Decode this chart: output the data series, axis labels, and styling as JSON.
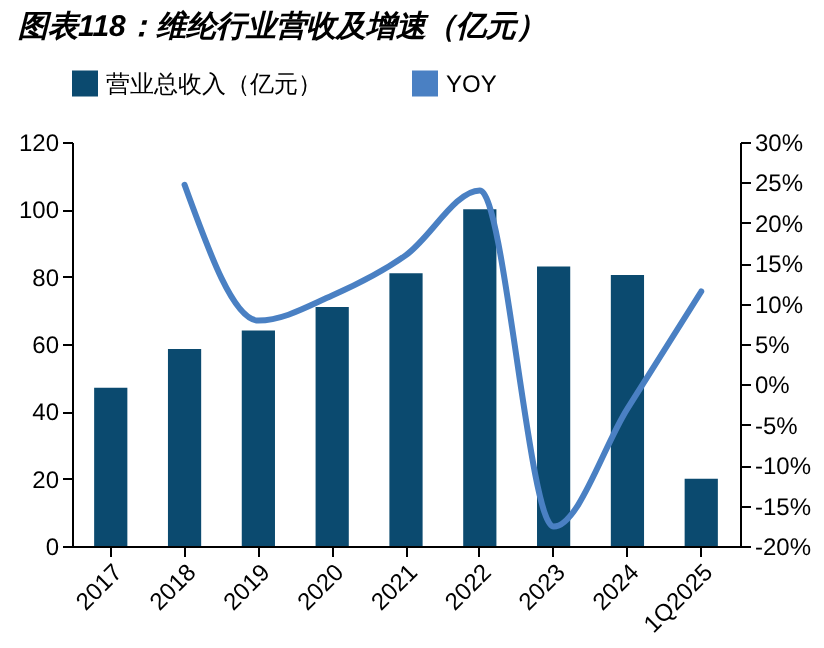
{
  "chart_data": {
    "type": "bar",
    "title": "图表118：维纶行业营收及增速（亿元）",
    "categories": [
      "2017",
      "2018",
      "2019",
      "2020",
      "2021",
      "2022",
      "2023",
      "2024",
      "1Q2025"
    ],
    "series": [
      {
        "name": "营业总收入（亿元）",
        "color": "#0b4a6f",
        "values": [
          47,
          58.5,
          64,
          71,
          81,
          100,
          83,
          80.5,
          20
        ]
      },
      {
        "name": "YOY",
        "type": "line",
        "axis": "y2",
        "color": "#4a80c3",
        "values": [
          null,
          24.7,
          7.9,
          11,
          16,
          24,
          -17.6,
          -3,
          11.5
        ]
      }
    ],
    "ylim": [
      0,
      120
    ],
    "yticks": [
      0,
      20,
      40,
      60,
      80,
      100,
      120
    ],
    "y2lim": [
      -20,
      30
    ],
    "y2ticks": [
      {
        "value": -20,
        "label": "-20%"
      },
      {
        "value": -15,
        "label": "-15%"
      },
      {
        "value": -10,
        "label": "-10%"
      },
      {
        "value": -5,
        "label": "-5%"
      },
      {
        "value": 0,
        "label": "0%"
      },
      {
        "value": 5,
        "label": "5%"
      },
      {
        "value": 10,
        "label": "10%"
      },
      {
        "value": 15,
        "label": "15%"
      },
      {
        "value": 20,
        "label": "20%"
      },
      {
        "value": 25,
        "label": "25%"
      },
      {
        "value": 30,
        "label": "30%"
      }
    ],
    "legend": "top",
    "grid": false
  }
}
